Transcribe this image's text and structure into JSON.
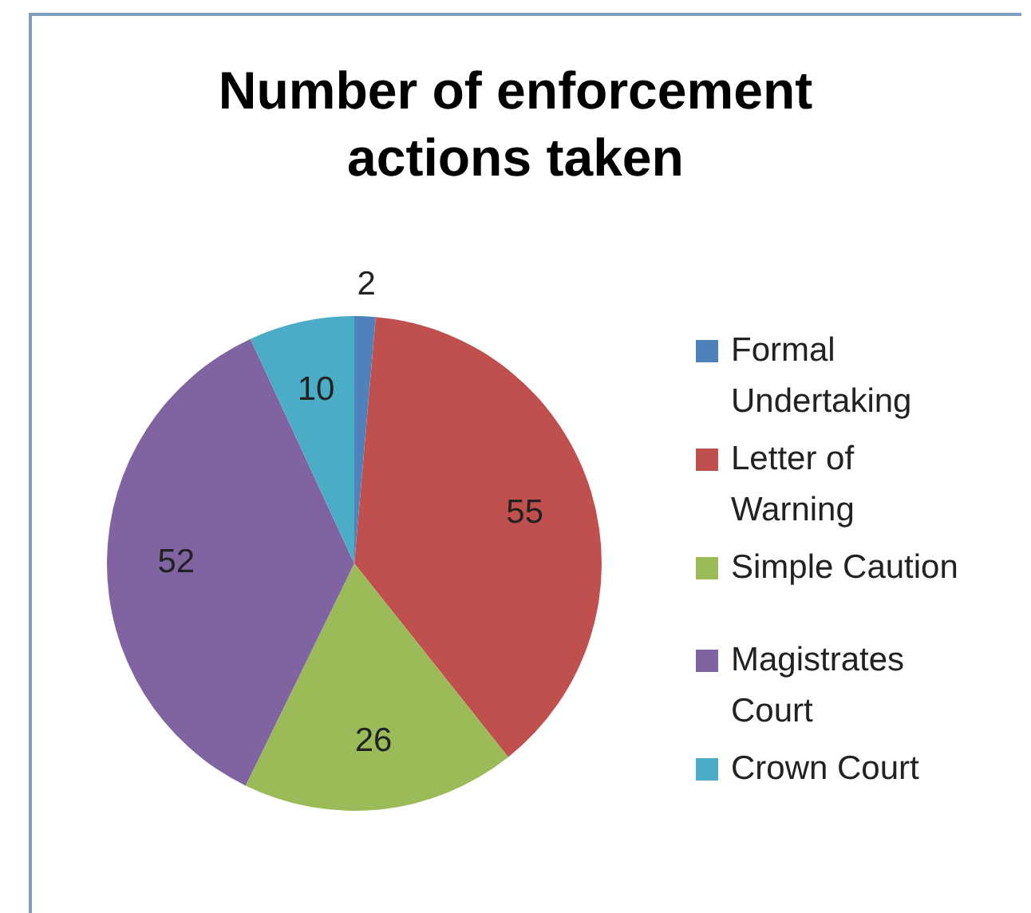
{
  "chart_data": {
    "type": "pie",
    "title": "Number of enforcement actions taken",
    "categories": [
      "Formal Undertaking",
      "Letter of Warning",
      "Simple Caution",
      "Magistrates Court",
      "Crown Court"
    ],
    "values": [
      2,
      55,
      26,
      52,
      10
    ],
    "colors": [
      "#4f81bd",
      "#c0504d",
      "#9bbb59",
      "#8064a2",
      "#4bacc6"
    ],
    "data_labels": true,
    "legend": "right"
  }
}
